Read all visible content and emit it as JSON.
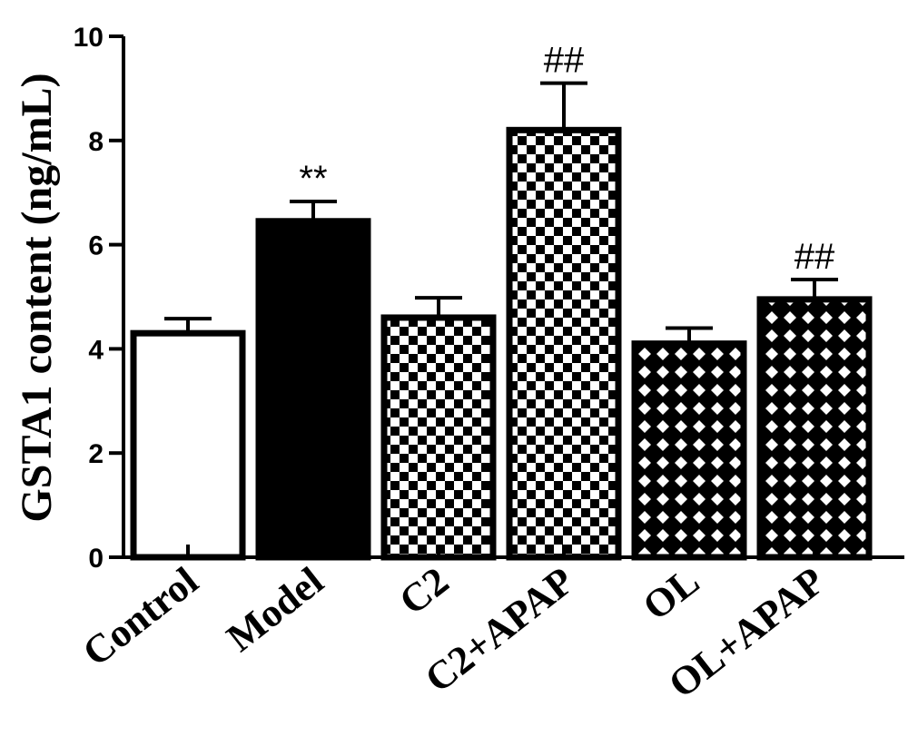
{
  "chart_data": {
    "type": "bar",
    "categories": [
      "Control",
      "Model",
      "C2",
      "C2+APAP",
      "OL",
      "OL+APAP"
    ],
    "values": [
      4.3,
      6.45,
      4.6,
      8.2,
      4.1,
      4.95
    ],
    "errors": [
      0.28,
      0.38,
      0.38,
      0.9,
      0.3,
      0.38
    ],
    "annotations": [
      "",
      "**",
      "",
      "##",
      "",
      "##"
    ],
    "fills": [
      "white",
      "black",
      "checker",
      "checker",
      "crosshatch",
      "crosshatch"
    ],
    "ylabel": "GSTA1 content (ng/mL)",
    "xlabel": "",
    "ylim": [
      0,
      10
    ],
    "yticks": [
      0,
      2,
      4,
      6,
      8,
      10
    ],
    "grid": false,
    "legend": "none"
  }
}
